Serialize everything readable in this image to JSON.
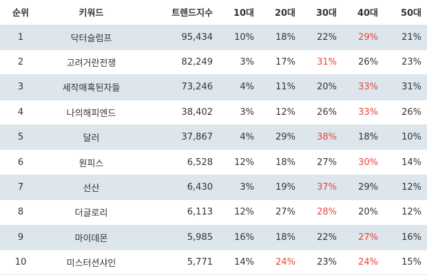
{
  "columns": [
    "순위",
    "키워드",
    "트렌드지수",
    "10대",
    "20대",
    "30대",
    "40대",
    "50대"
  ],
  "highlight_color": "#e8443a",
  "rows": [
    {
      "rank": "1",
      "keyword": "닥터슬럼프",
      "index": "95,434",
      "pct": [
        "10%",
        "18%",
        "22%",
        "29%",
        "21%"
      ],
      "max": 3
    },
    {
      "rank": "2",
      "keyword": "고려거란전쟁",
      "index": "82,249",
      "pct": [
        "3%",
        "17%",
        "31%",
        "26%",
        "23%"
      ],
      "max": 2
    },
    {
      "rank": "3",
      "keyword": "세작매혹된자들",
      "index": "73,246",
      "pct": [
        "4%",
        "11%",
        "20%",
        "33%",
        "31%"
      ],
      "max": 3
    },
    {
      "rank": "4",
      "keyword": "나의해피엔드",
      "index": "38,402",
      "pct": [
        "3%",
        "12%",
        "26%",
        "33%",
        "26%"
      ],
      "max": 3
    },
    {
      "rank": "5",
      "keyword": "달러",
      "index": "37,867",
      "pct": [
        "4%",
        "29%",
        "38%",
        "18%",
        "10%"
      ],
      "max": 2
    },
    {
      "rank": "6",
      "keyword": "원피스",
      "index": "6,528",
      "pct": [
        "12%",
        "18%",
        "27%",
        "30%",
        "14%"
      ],
      "max": 3
    },
    {
      "rank": "7",
      "keyword": "선산",
      "index": "6,430",
      "pct": [
        "3%",
        "19%",
        "37%",
        "29%",
        "12%"
      ],
      "max": 2
    },
    {
      "rank": "8",
      "keyword": "더글로리",
      "index": "6,113",
      "pct": [
        "12%",
        "27%",
        "28%",
        "20%",
        "12%"
      ],
      "max": 2
    },
    {
      "rank": "9",
      "keyword": "마이데몬",
      "index": "5,985",
      "pct": [
        "16%",
        "18%",
        "22%",
        "27%",
        "16%"
      ],
      "max": 3
    },
    {
      "rank": "10",
      "keyword": "미스터션샤인",
      "index": "5,771",
      "pct": [
        "14%",
        "24%",
        "23%",
        "24%",
        "15%"
      ],
      "max": [
        1,
        3
      ]
    }
  ]
}
